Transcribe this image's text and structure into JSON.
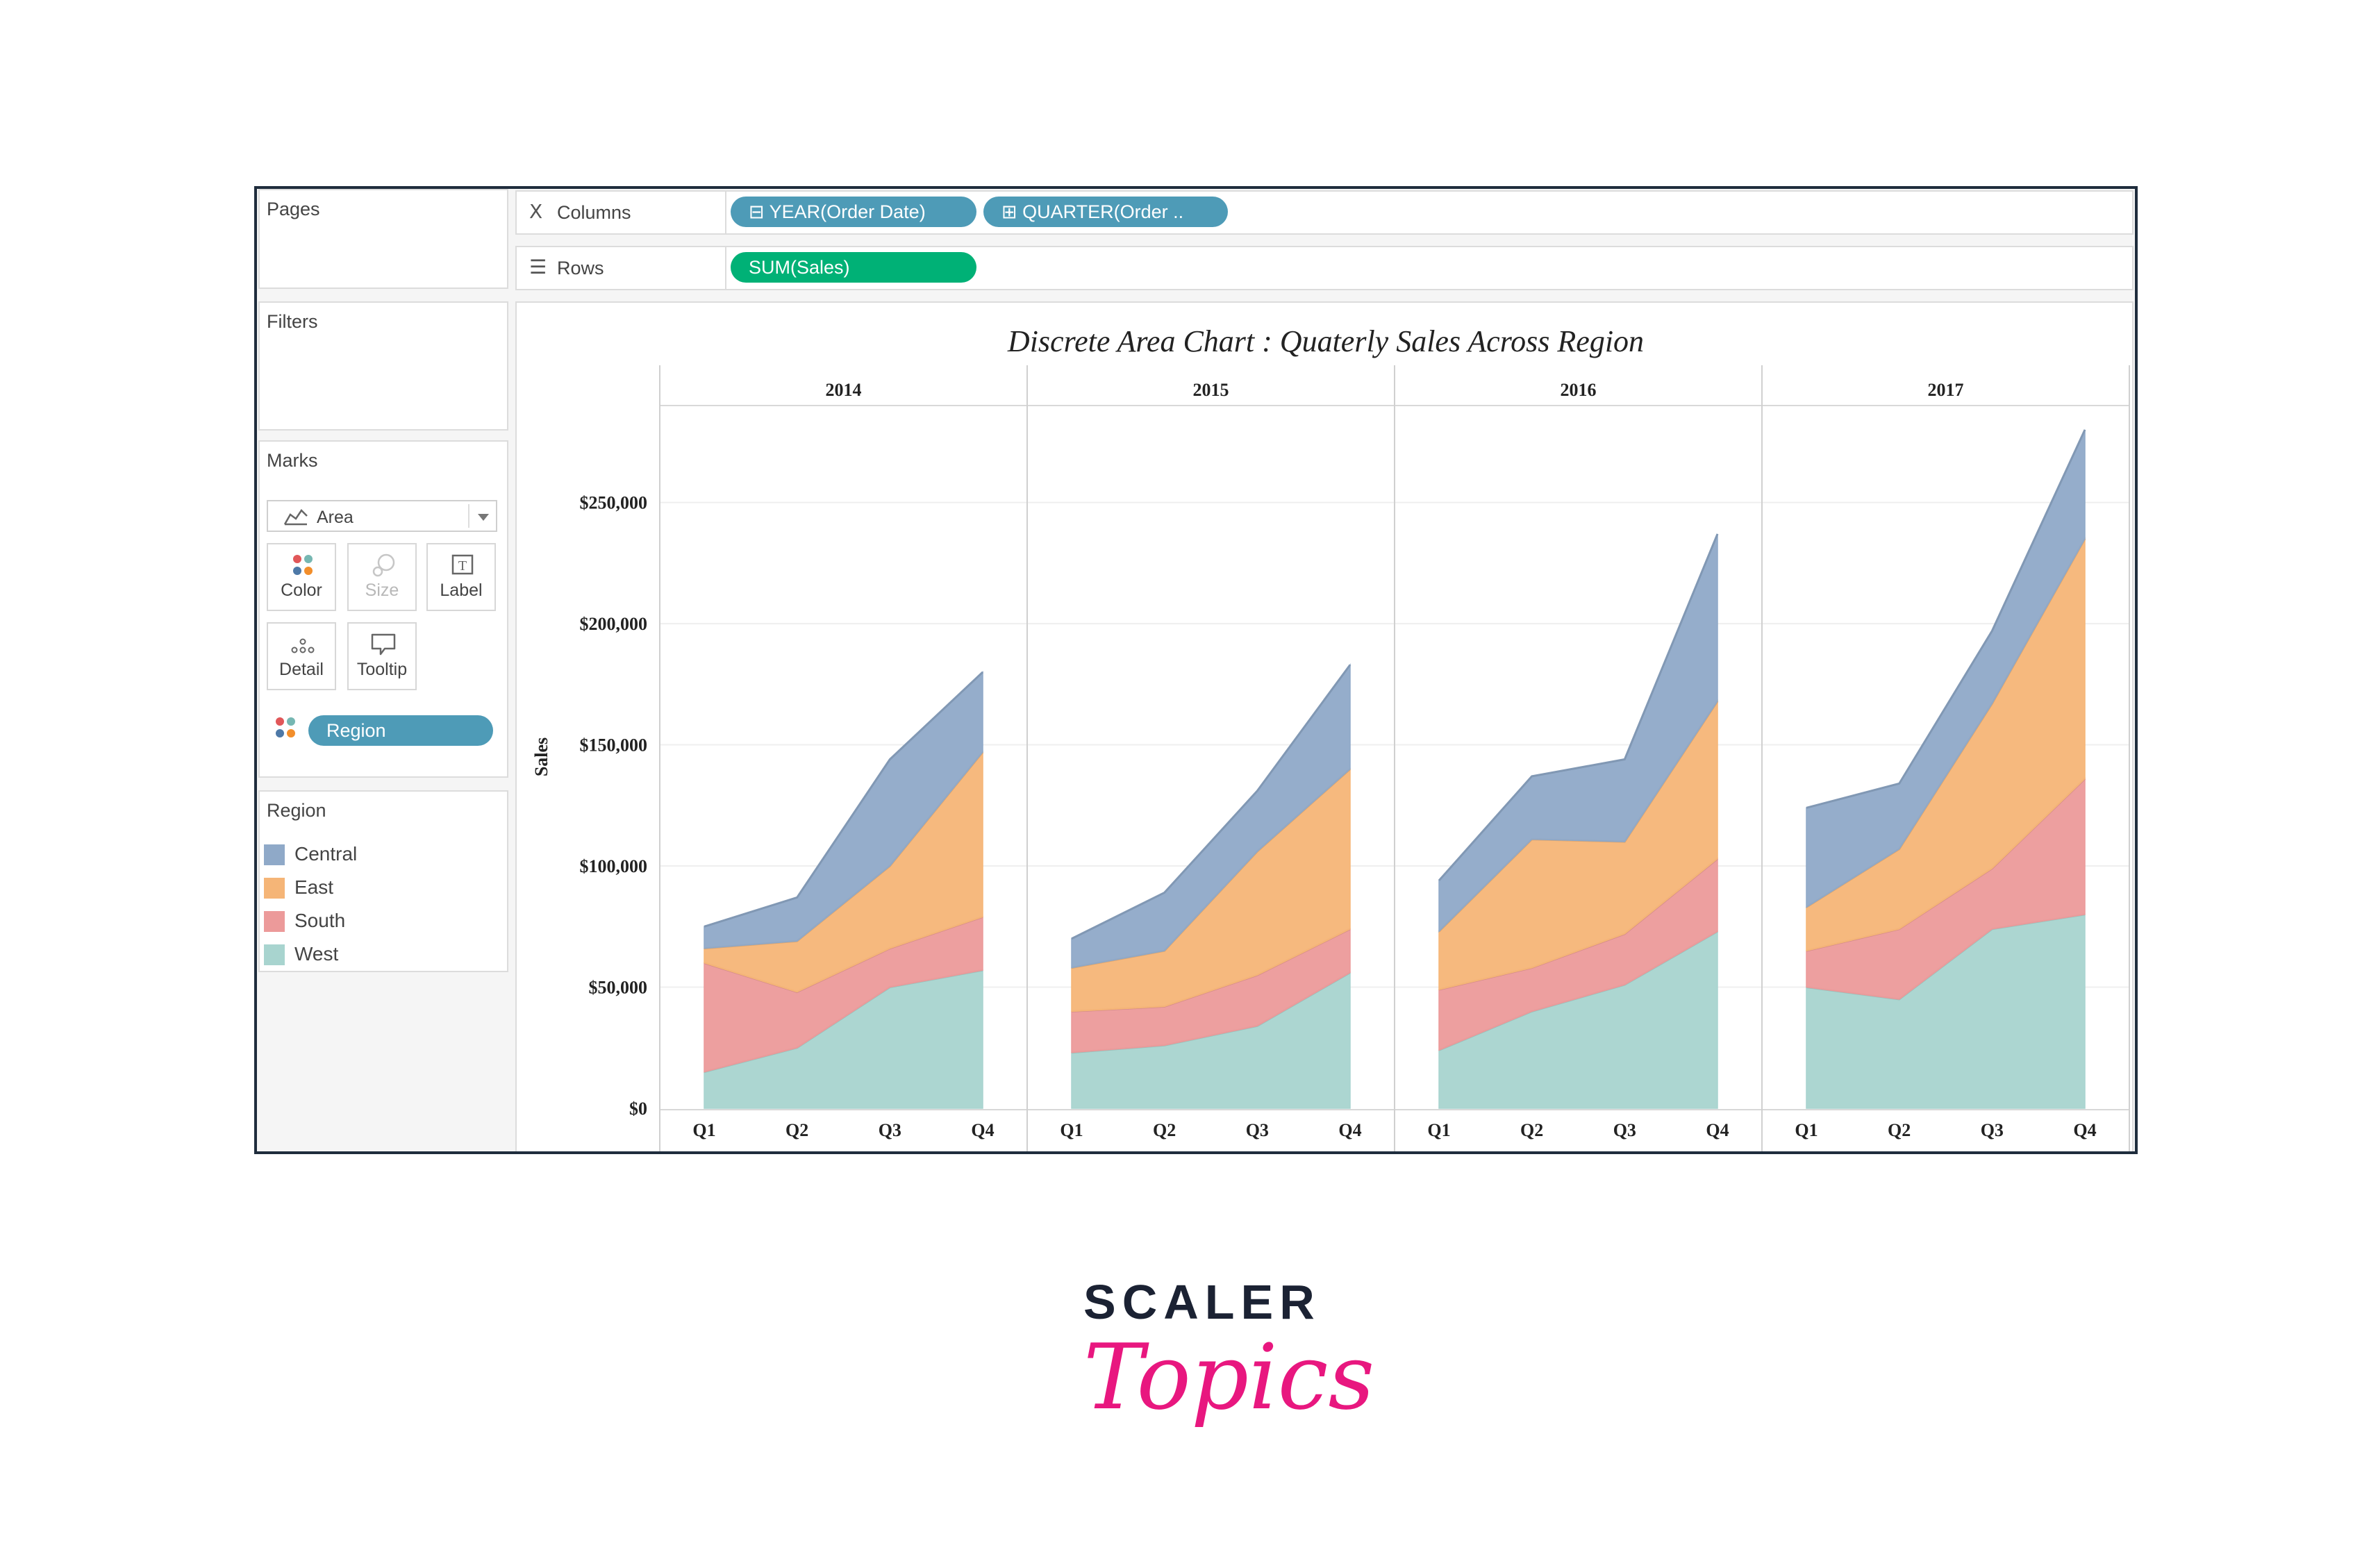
{
  "shelves": {
    "columns": {
      "label": "Columns",
      "pills": [
        "⊟ YEAR(Order Date)",
        "⊞ QUARTER(Order .."
      ]
    },
    "rows": {
      "label": "Rows",
      "pills": [
        "SUM(Sales)"
      ]
    }
  },
  "sidebar": {
    "pages_title": "Pages",
    "filters_title": "Filters",
    "marks": {
      "title": "Marks",
      "mark_type": "Area",
      "buttons": [
        "Color",
        "Size",
        "Label",
        "Detail",
        "Tooltip"
      ],
      "color_field": "Region"
    },
    "legend": {
      "title": "Region",
      "items": [
        {
          "name": "Central",
          "color": "#8fa9c8"
        },
        {
          "name": "East",
          "color": "#f5b577"
        },
        {
          "name": "South",
          "color": "#ec9a9a"
        },
        {
          "name": "West",
          "color": "#a8d4cf"
        }
      ]
    }
  },
  "chart_data": {
    "type": "area",
    "stacked": true,
    "title": "Discrete Area Chart : Quaterly Sales Across Region",
    "ylabel": "Sales",
    "ylim": [
      0,
      290000
    ],
    "yticks": [
      0,
      50000,
      100000,
      150000,
      200000,
      250000
    ],
    "ytick_labels": [
      "$0",
      "$50,000",
      "$100,000",
      "$150,000",
      "$200,000",
      "$250,000"
    ],
    "panes": [
      "2014",
      "2015",
      "2016",
      "2017"
    ],
    "categories": [
      "Q1",
      "Q2",
      "Q3",
      "Q4"
    ],
    "series": [
      {
        "name": "West",
        "color": "#a8d4cf",
        "values": [
          [
            15000,
            25000,
            50000,
            57000
          ],
          [
            23000,
            26000,
            34000,
            56000
          ],
          [
            24000,
            40000,
            51000,
            73000
          ],
          [
            50000,
            45000,
            74000,
            80000
          ]
        ]
      },
      {
        "name": "South",
        "color": "#ec9a9a",
        "values": [
          [
            45000,
            23000,
            16000,
            22000
          ],
          [
            17000,
            16000,
            21000,
            18000
          ],
          [
            25000,
            18000,
            21000,
            30000
          ],
          [
            15000,
            29000,
            25000,
            56000
          ]
        ]
      },
      {
        "name": "East",
        "color": "#f5b577",
        "values": [
          [
            6000,
            21000,
            34000,
            68000
          ],
          [
            18000,
            23000,
            51000,
            66000
          ],
          [
            24000,
            53000,
            38000,
            65000
          ],
          [
            18000,
            33000,
            68000,
            99000
          ]
        ]
      },
      {
        "name": "Central",
        "color": "#8fa9c8",
        "values": [
          [
            9000,
            18000,
            44000,
            33000
          ],
          [
            12000,
            24000,
            25000,
            43000
          ],
          [
            21000,
            26000,
            34000,
            69000
          ],
          [
            41000,
            27000,
            30000,
            45000
          ]
        ]
      }
    ]
  },
  "logo": {
    "top": "SCALER",
    "bottom": "Topics"
  }
}
